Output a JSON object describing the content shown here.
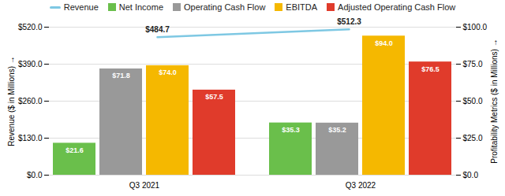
{
  "chart_data": {
    "type": "bar",
    "categories": [
      "Q3 2021",
      "Q3 2022"
    ],
    "series": [
      {
        "name": "Revenue",
        "type": "line",
        "color": "#7ec8e3",
        "values": [
          484.7,
          512.3
        ],
        "value_labels": [
          "$484.7",
          "$512.3"
        ]
      },
      {
        "name": "Net Income",
        "type": "bar",
        "axis": "y2",
        "color": "#6abf4b",
        "values": [
          21.6,
          35.3
        ],
        "value_labels": [
          "$21.6",
          "$35.3"
        ]
      },
      {
        "name": "Operating Cash Flow",
        "type": "bar",
        "axis": "y2",
        "color": "#999999",
        "values": [
          71.8,
          35.2
        ],
        "value_labels": [
          "$71.8",
          "$35.2"
        ]
      },
      {
        "name": "EBITDA",
        "type": "bar",
        "axis": "y2",
        "color": "#f5b800",
        "values": [
          74.0,
          94.0
        ],
        "value_labels": [
          "$74.0",
          "$94.0"
        ]
      },
      {
        "name": "Adjusted Operating Cash Flow",
        "type": "bar",
        "axis": "y2",
        "color": "#e03b2b",
        "values": [
          57.5,
          76.5
        ],
        "value_labels": [
          "$57.5",
          "$76.5"
        ]
      }
    ],
    "ylabel": "Revenue ($ in Millions)",
    "y2label": "Profitability Metrics ($ in Millions)",
    "ylim": [
      0,
      520
    ],
    "yticks": [
      {
        "value": 0,
        "label": "$0.0"
      },
      {
        "value": 130,
        "label": "$130.0"
      },
      {
        "value": 260,
        "label": "$260.0"
      },
      {
        "value": 390,
        "label": "$390.0"
      },
      {
        "value": 520,
        "label": "$520.0"
      }
    ],
    "y2lim": [
      0,
      100
    ],
    "y2ticks": [
      {
        "value": 0,
        "label": "$0.0"
      },
      {
        "value": 25,
        "label": "$25.0"
      },
      {
        "value": 50,
        "label": "$50.0"
      },
      {
        "value": 75,
        "label": "$75.0"
      },
      {
        "value": 100,
        "label": "$100.0"
      }
    ],
    "grid": true,
    "data_labels": true,
    "legend": "top"
  }
}
